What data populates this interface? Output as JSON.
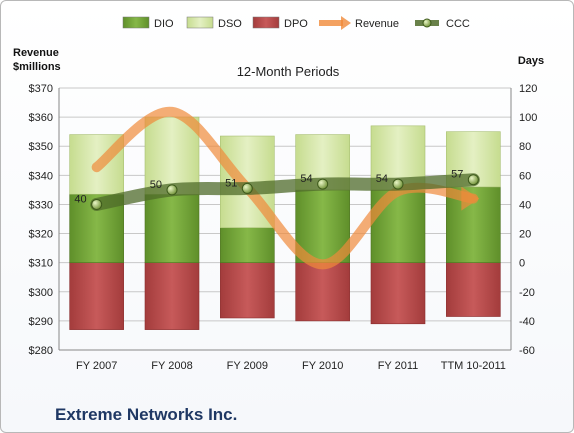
{
  "company": "Extreme Networks Inc.",
  "legend": {
    "dio": "DIO",
    "dso": "DSO",
    "dpo": "DPO",
    "revenue": "Revenue",
    "ccc": "CCC"
  },
  "colors": {
    "dio": "#77a83a",
    "dso": "#d7e8a9",
    "dpo": "#b84a4a",
    "revenue": "#f0a05a",
    "ccc": "#4f6b2a"
  },
  "chart_data": {
    "type": "bar",
    "title": "12-Month Periods",
    "y_left_label": "Revenue\n$millions",
    "y_right_label": "Days",
    "categories": [
      "FY 2007",
      "FY 2008",
      "FY 2009",
      "FY 2010",
      "FY 2011",
      "TTM 10-2011"
    ],
    "y_left_range": [
      280,
      370
    ],
    "y_left_ticks": [
      "$280",
      "$290",
      "$300",
      "$310",
      "$320",
      "$330",
      "$340",
      "$350",
      "$360",
      "$370"
    ],
    "y_right_range": [
      -60,
      120
    ],
    "y_right_ticks": [
      "-60",
      "-40",
      "-20",
      "0",
      "20",
      "40",
      "60",
      "80",
      "100",
      "120"
    ],
    "series": [
      {
        "name": "DIO",
        "axis": "days",
        "stack": "positive",
        "values": [
          47,
          47,
          24,
          50,
          50,
          52
        ]
      },
      {
        "name": "DSO",
        "axis": "days",
        "stack": "positive",
        "values": [
          41,
          53,
          63,
          38,
          44,
          38
        ]
      },
      {
        "name": "DPO",
        "axis": "days",
        "stack": "negative",
        "values": [
          -46,
          -46,
          -38,
          -40,
          -42,
          -37
        ]
      },
      {
        "name": "Revenue",
        "axis": "revenue",
        "type": "line",
        "values": [
          342.8,
          361.8,
          335.6,
          309.4,
          334.5,
          332
        ]
      },
      {
        "name": "CCC",
        "axis": "days",
        "type": "line",
        "values": [
          40,
          50,
          51,
          54,
          54,
          57
        ],
        "labels": [
          "40",
          "50",
          "51",
          "54",
          "54",
          "57"
        ]
      }
    ],
    "grid": true,
    "legend_position": "top"
  }
}
